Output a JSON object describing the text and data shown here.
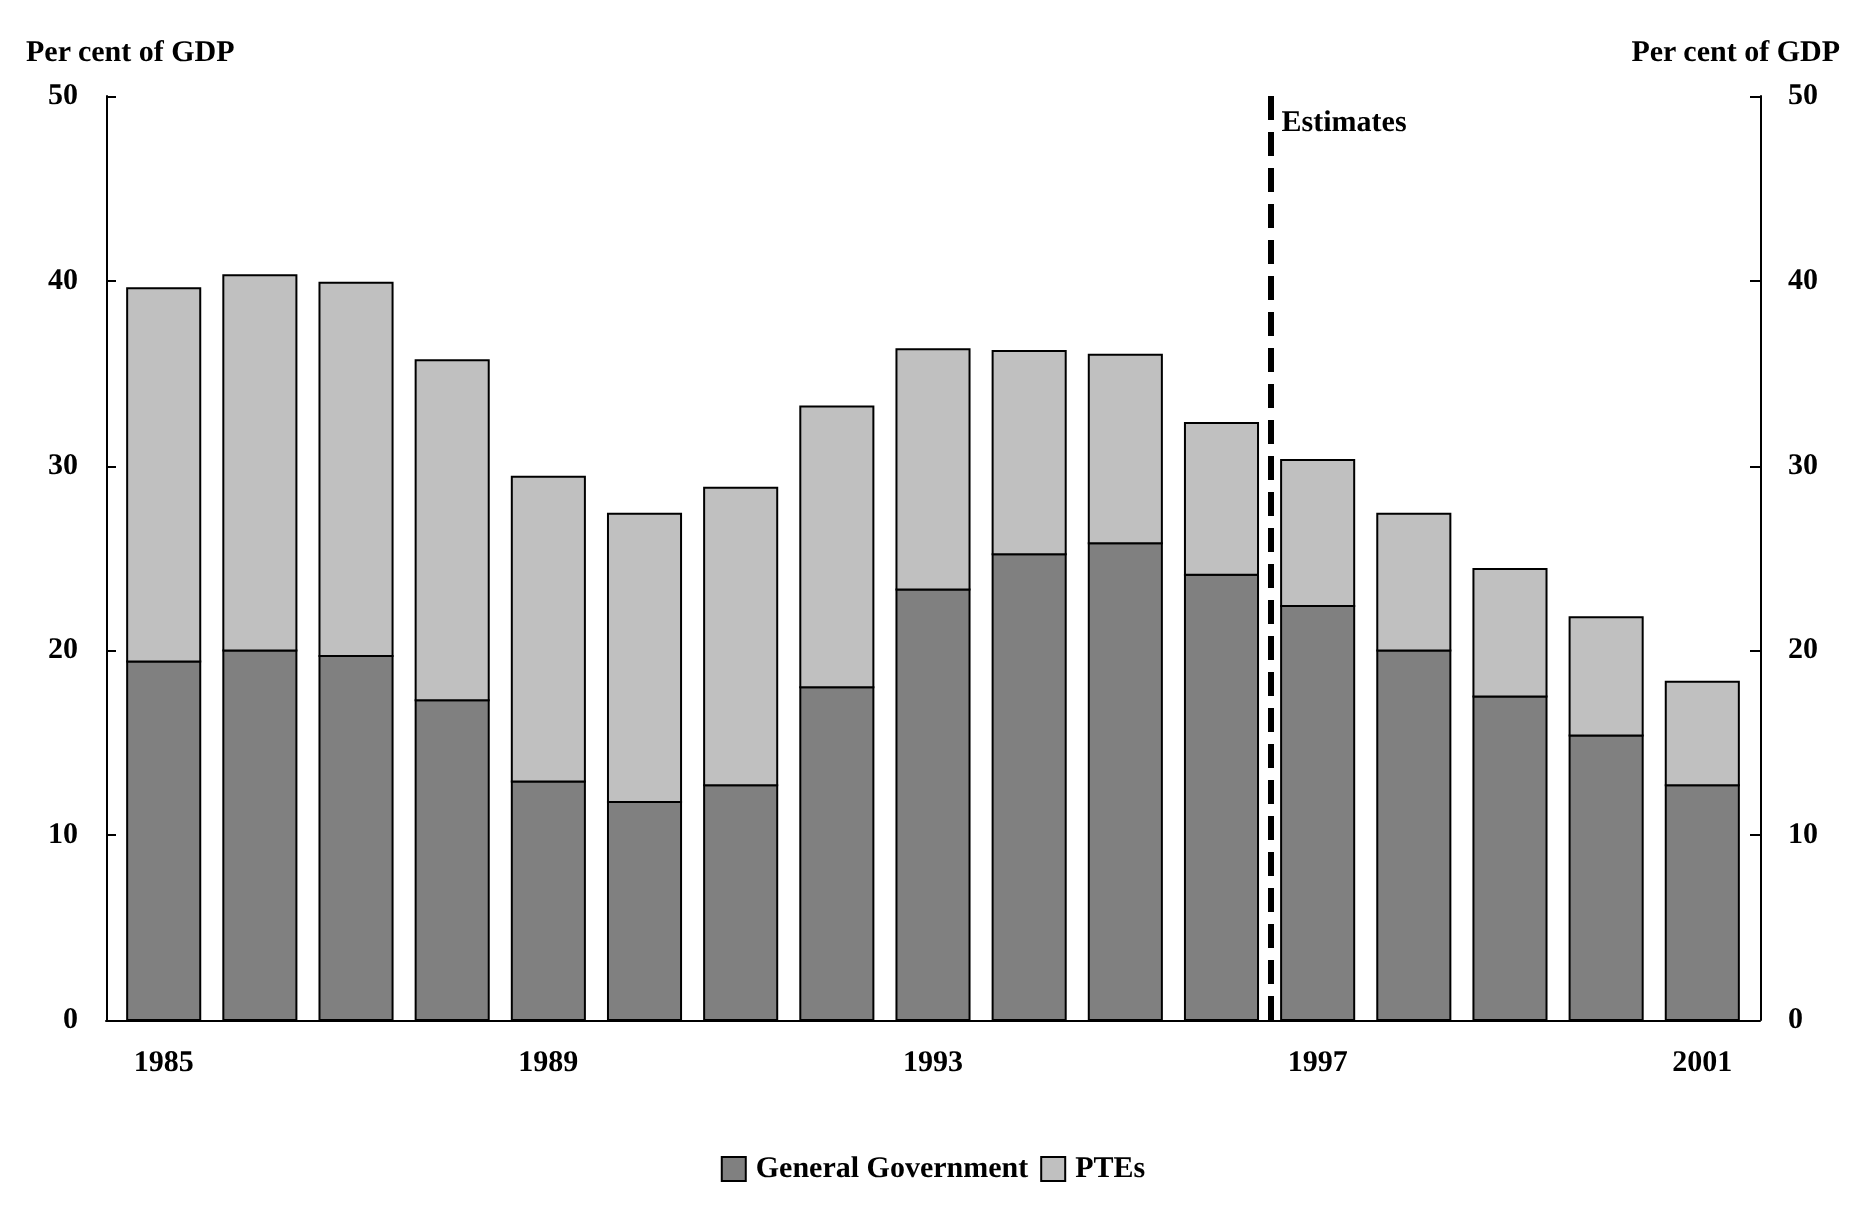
{
  "chart_data": {
    "type": "bar",
    "stacked": true,
    "ylabel": "Per cent of GDP",
    "y2label": "Per cent of GDP",
    "x": [
      1985,
      1986,
      1987,
      1988,
      1989,
      1990,
      1991,
      1992,
      1993,
      1994,
      1995,
      1996,
      1997,
      1998,
      1999,
      2000,
      2001
    ],
    "xlim": [
      1984.4,
      2001.6
    ],
    "xticks": [
      1985,
      1989,
      1993,
      1997,
      2001
    ],
    "ylim": [
      0,
      50
    ],
    "yticks": [
      0,
      10,
      20,
      30,
      40,
      50
    ],
    "y2lim": [
      0,
      50
    ],
    "y2ticks": [
      0,
      10,
      20,
      30,
      40,
      50
    ],
    "series": [
      {
        "name": "General Government",
        "color": "#808080",
        "values": [
          19.4,
          20.0,
          19.7,
          17.3,
          12.9,
          11.8,
          12.7,
          18.0,
          23.3,
          25.2,
          25.8,
          24.1,
          22.4,
          20.0,
          17.5,
          15.4,
          12.7
        ]
      },
      {
        "name": "PTEs",
        "color": "#c0c0c0",
        "values": [
          20.2,
          20.3,
          20.2,
          18.4,
          16.5,
          15.6,
          16.1,
          15.2,
          13.0,
          11.0,
          10.2,
          8.2,
          7.9,
          7.4,
          6.9,
          6.4,
          5.6
        ]
      }
    ],
    "ref_lines": [
      {
        "axis": "x",
        "value": 1996.5,
        "label": "Estimates",
        "color": "#000000",
        "line_style": "dashed"
      }
    ],
    "grid": false,
    "legend": "bottom"
  }
}
